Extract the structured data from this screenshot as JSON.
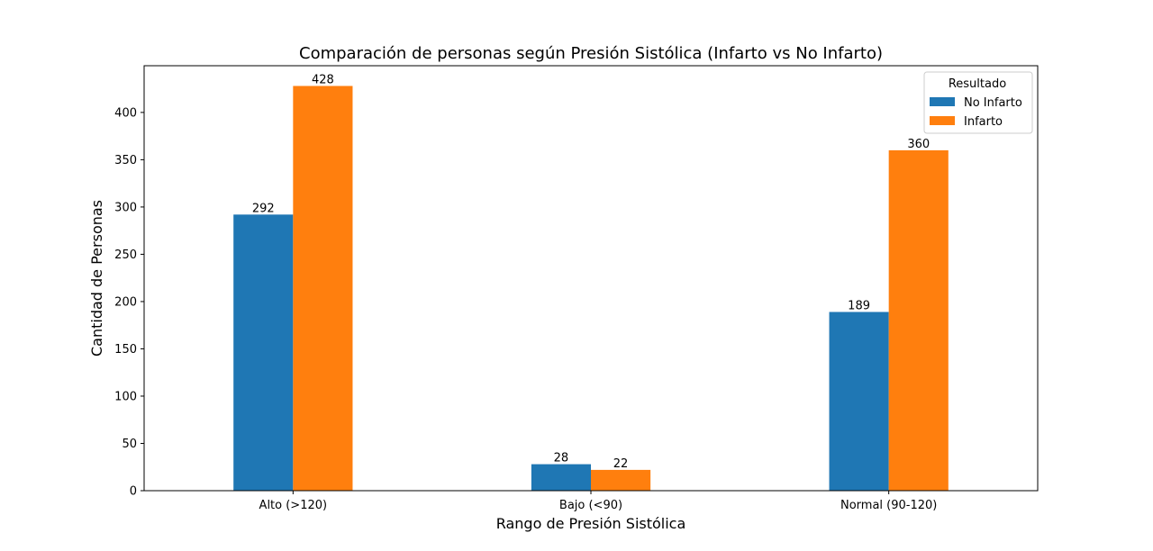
{
  "chart_data": {
    "type": "bar",
    "title": "Comparación de personas según Presión Sistólica (Infarto vs No Infarto)",
    "xlabel": "Rango de Presión Sistólica",
    "ylabel": "Cantidad de Personas",
    "categories": [
      "Alto (>120)",
      "Bajo (<90)",
      "Normal (90-120)"
    ],
    "series": [
      {
        "name": "No Infarto",
        "values": [
          292,
          28,
          189
        ],
        "color": "#1f77b4"
      },
      {
        "name": "Infarto",
        "values": [
          428,
          22,
          360
        ],
        "color": "#ff7f0e"
      }
    ],
    "ylim": [
      0,
      449.4
    ],
    "yticks": [
      0,
      50,
      100,
      150,
      200,
      250,
      300,
      350,
      400
    ],
    "legend": {
      "title": "Resultado",
      "placement": "top-right"
    },
    "grid": false
  }
}
